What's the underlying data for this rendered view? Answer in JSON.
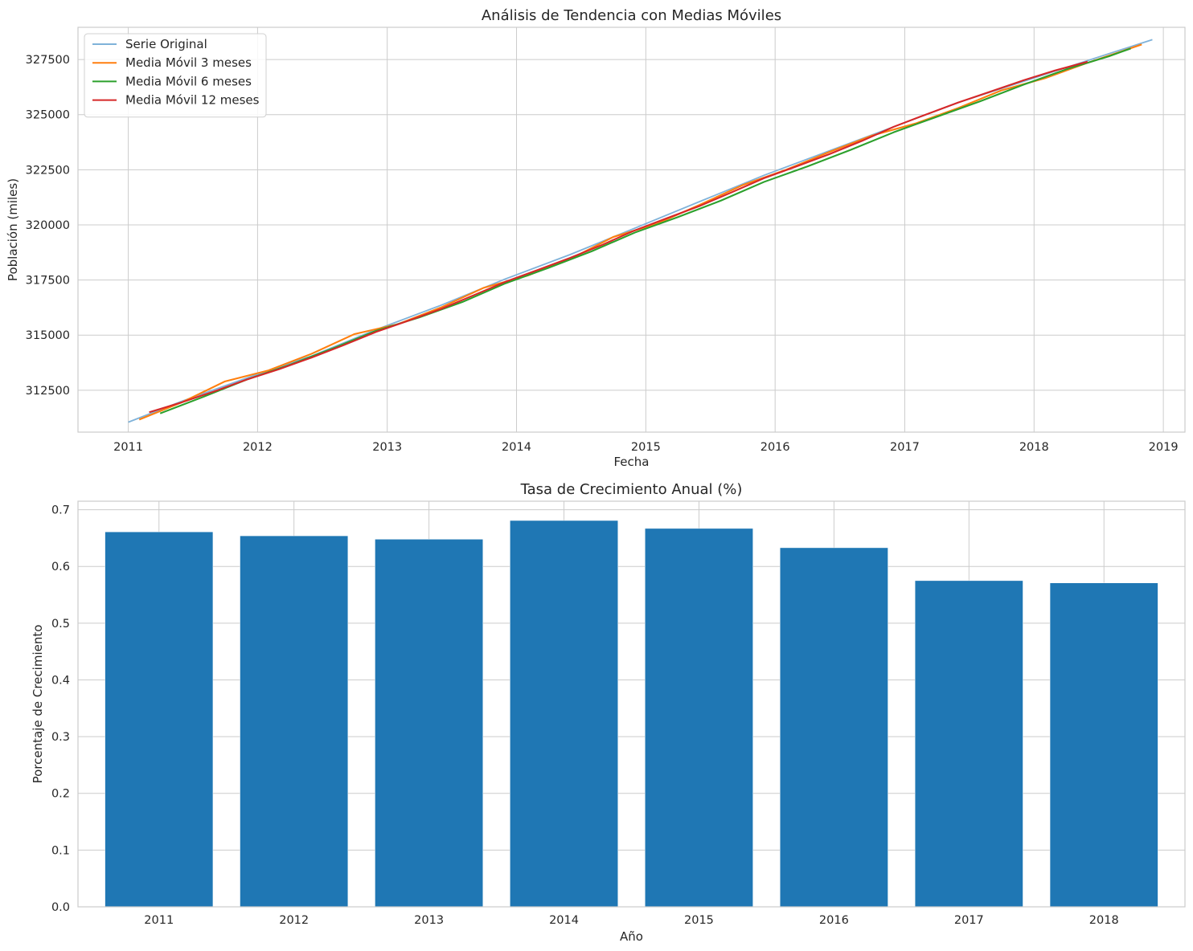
{
  "chart_data": [
    {
      "type": "line",
      "title": "Análisis de Tendencia con Medias Móviles",
      "xlabel": "Fecha",
      "ylabel": "Población (miles)",
      "xlim": [
        "2010-08-12",
        "2019-03-03"
      ],
      "ylim": [
        310600,
        328960
      ],
      "xticks": [
        2011,
        2012,
        2013,
        2014,
        2015,
        2016,
        2017,
        2018,
        2019
      ],
      "xtick_labels": [
        "2011",
        "2012",
        "2013",
        "2014",
        "2015",
        "2016",
        "2017",
        "2018",
        "2019"
      ],
      "yticks": [
        312500,
        315000,
        317500,
        320000,
        322500,
        325000,
        327500
      ],
      "ytick_labels": [
        "312500",
        "315000",
        "317500",
        "320000",
        "322500",
        "325000",
        "327500"
      ],
      "grid": true,
      "legend_position": "top-left",
      "series": [
        {
          "name": "Serie Original",
          "color": "#7fb2d9",
          "x": [
            "2011-01",
            "2011-06",
            "2011-12",
            "2012-06",
            "2012-12",
            "2013-06",
            "2013-12",
            "2014-06",
            "2014-12",
            "2015-06",
            "2015-12",
            "2016-06",
            "2016-12",
            "2017-06",
            "2017-12",
            "2018-06",
            "2018-12"
          ],
          "y": [
            311050,
            312000,
            313050,
            314050,
            315250,
            316350,
            317550,
            318650,
            319850,
            321050,
            322250,
            323350,
            324450,
            325550,
            326500,
            327450,
            328400
          ]
        },
        {
          "name": "Media Móvil 3 meses",
          "color": "#ff7f0e",
          "x": [
            "2011-02",
            "2011-06",
            "2011-10",
            "2012-02",
            "2012-06",
            "2012-10",
            "2013-02",
            "2013-06",
            "2013-10",
            "2014-02",
            "2014-06",
            "2014-10",
            "2015-02",
            "2015-06",
            "2015-10",
            "2016-02",
            "2016-06",
            "2016-10",
            "2017-02",
            "2017-06",
            "2017-10",
            "2018-02",
            "2018-06",
            "2018-11"
          ],
          "y": [
            311170,
            311950,
            312900,
            313400,
            314150,
            315050,
            315500,
            316250,
            317150,
            317700,
            318450,
            319450,
            320050,
            320900,
            321800,
            322500,
            323300,
            324050,
            324600,
            325300,
            326100,
            326650,
            327350,
            328180
          ]
        },
        {
          "name": "Media Móvil 6 meses",
          "color": "#2ca02c",
          "x": [
            "2011-04",
            "2011-08",
            "2011-12",
            "2012-04",
            "2012-08",
            "2012-12",
            "2013-04",
            "2013-08",
            "2013-12",
            "2014-04",
            "2014-08",
            "2014-12",
            "2015-04",
            "2015-08",
            "2015-12",
            "2016-04",
            "2016-08",
            "2016-12",
            "2017-04",
            "2017-08",
            "2017-12",
            "2018-04",
            "2018-08",
            "2018-10"
          ],
          "y": [
            311450,
            312200,
            312980,
            313650,
            314400,
            315200,
            315800,
            316500,
            317350,
            318050,
            318800,
            319650,
            320350,
            321100,
            321950,
            322650,
            323400,
            324200,
            324900,
            325600,
            326350,
            327050,
            327650,
            328000
          ]
        },
        {
          "name": "Media Móvil 12 meses",
          "color": "#d62728",
          "x": [
            "2011-03",
            "2011-06",
            "2011-09",
            "2011-12",
            "2012-03",
            "2012-06",
            "2012-09",
            "2012-12",
            "2013-03",
            "2013-06",
            "2013-09",
            "2013-12",
            "2014-03",
            "2014-06",
            "2014-09",
            "2014-12",
            "2015-03",
            "2015-06",
            "2015-09",
            "2015-12",
            "2016-03",
            "2016-06",
            "2016-09",
            "2016-12",
            "2017-03",
            "2017-06",
            "2017-09",
            "2017-12",
            "2018-03",
            "2018-06"
          ],
          "y": [
            311500,
            311950,
            312450,
            312980,
            313450,
            313980,
            314550,
            315150,
            315650,
            316180,
            316800,
            317420,
            317950,
            318500,
            319100,
            319750,
            320300,
            320850,
            321480,
            322120,
            322650,
            323200,
            323800,
            324450,
            325000,
            325550,
            326050,
            326550,
            327000,
            327400
          ]
        }
      ]
    },
    {
      "type": "bar",
      "title": "Tasa de Crecimiento Anual (%)",
      "xlabel": "Año",
      "ylabel": "Porcentaje de Crecimiento",
      "categories": [
        "2011",
        "2012",
        "2013",
        "2014",
        "2015",
        "2016",
        "2017",
        "2018"
      ],
      "values": [
        0.661,
        0.654,
        0.648,
        0.681,
        0.667,
        0.633,
        0.575,
        0.571
      ],
      "ylim": [
        0,
        0.715
      ],
      "yticks": [
        0.0,
        0.1,
        0.2,
        0.3,
        0.4,
        0.5,
        0.6,
        0.7
      ],
      "ytick_labels": [
        "0.0",
        "0.1",
        "0.2",
        "0.3",
        "0.4",
        "0.5",
        "0.6",
        "0.7"
      ],
      "grid": true,
      "color": "#1f77b4"
    }
  ]
}
